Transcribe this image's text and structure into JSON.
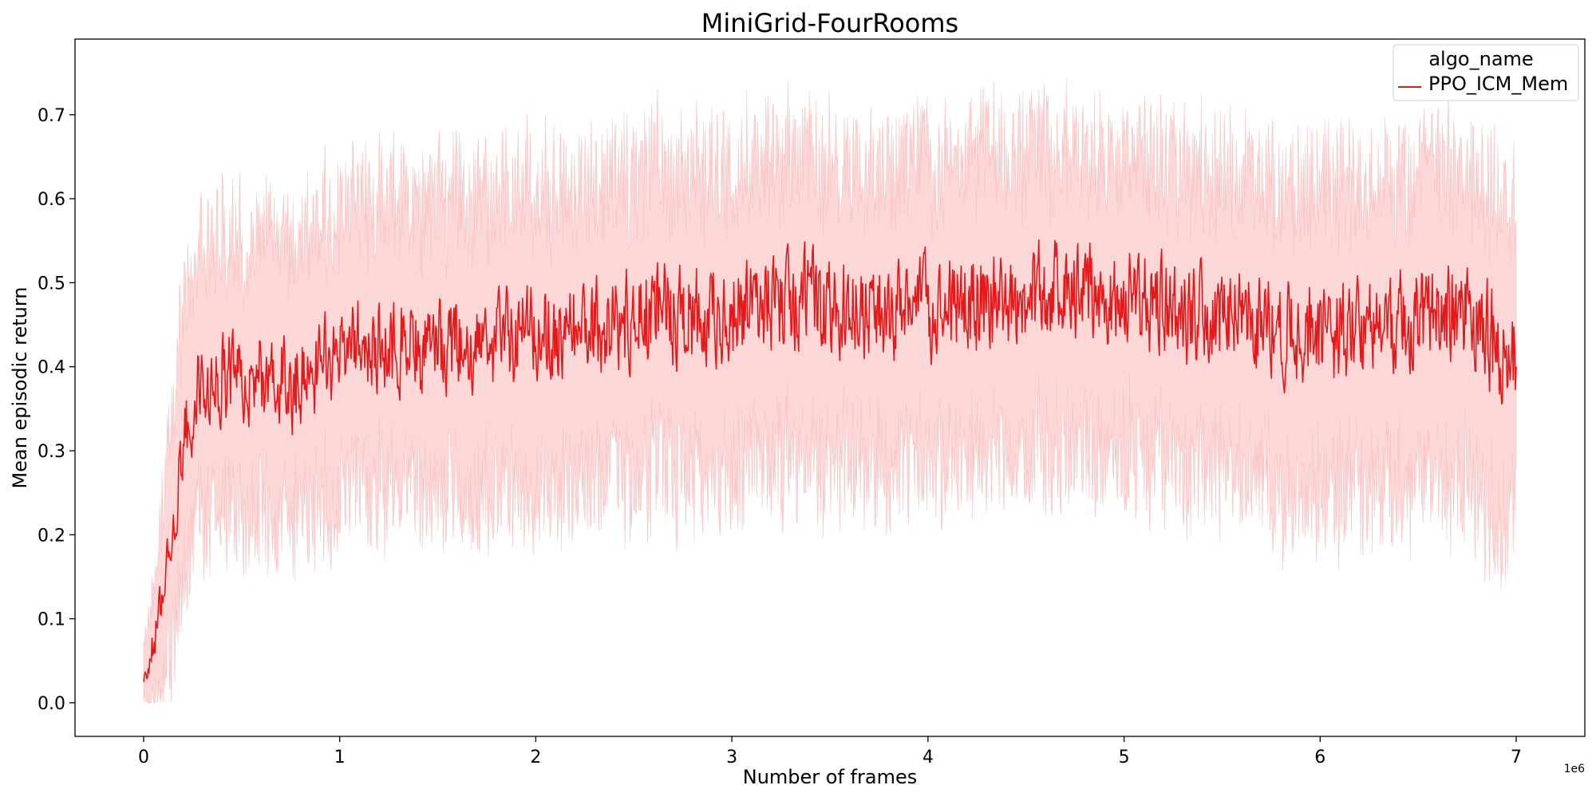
{
  "chart_data": {
    "type": "line",
    "title": "MiniGrid-FourRooms",
    "xlabel": "Number of frames",
    "ylabel": "Mean episodic return",
    "x_offset_label": "1e6",
    "xlim": [
      -350000,
      7350000
    ],
    "ylim": [
      -0.04,
      0.79
    ],
    "x_ticks": [
      0,
      1000000,
      2000000,
      3000000,
      4000000,
      5000000,
      6000000,
      7000000
    ],
    "x_tick_labels": [
      "0",
      "1",
      "2",
      "3",
      "4",
      "5",
      "6",
      "7"
    ],
    "y_ticks": [
      0.0,
      0.1,
      0.2,
      0.3,
      0.4,
      0.5,
      0.6,
      0.7
    ],
    "y_tick_labels": [
      "0.0",
      "0.1",
      "0.2",
      "0.3",
      "0.4",
      "0.5",
      "0.6",
      "0.7"
    ],
    "grid": false,
    "legend": {
      "title": "algo_name",
      "position": "top-right"
    },
    "colors": {
      "line": "#e31a1c",
      "band": "#f7b6b7"
    },
    "series": [
      {
        "name": "PPO_ICM_Mem",
        "x": [
          0,
          50000,
          100000,
          150000,
          200000,
          250000,
          300000,
          400000,
          500000,
          600000,
          700000,
          800000,
          900000,
          1000000,
          1200000,
          1400000,
          1600000,
          1800000,
          2000000,
          2200000,
          2400000,
          2600000,
          2800000,
          3000000,
          3200000,
          3400000,
          3600000,
          3800000,
          4000000,
          4200000,
          4400000,
          4600000,
          4800000,
          5000000,
          5200000,
          5400000,
          5600000,
          5800000,
          6000000,
          6200000,
          6400000,
          6600000,
          6800000,
          6900000,
          7000000
        ],
        "mean": [
          0.02,
          0.07,
          0.14,
          0.22,
          0.3,
          0.35,
          0.38,
          0.39,
          0.38,
          0.39,
          0.38,
          0.38,
          0.4,
          0.42,
          0.43,
          0.42,
          0.43,
          0.43,
          0.44,
          0.44,
          0.45,
          0.47,
          0.46,
          0.47,
          0.48,
          0.48,
          0.47,
          0.47,
          0.47,
          0.48,
          0.48,
          0.49,
          0.48,
          0.49,
          0.47,
          0.46,
          0.46,
          0.44,
          0.44,
          0.44,
          0.45,
          0.46,
          0.46,
          0.42,
          0.41
        ],
        "lower": [
          0.0,
          0.0,
          0.02,
          0.08,
          0.14,
          0.2,
          0.22,
          0.24,
          0.22,
          0.23,
          0.22,
          0.22,
          0.23,
          0.25,
          0.26,
          0.25,
          0.25,
          0.25,
          0.26,
          0.26,
          0.27,
          0.28,
          0.27,
          0.28,
          0.29,
          0.29,
          0.29,
          0.28,
          0.28,
          0.29,
          0.3,
          0.3,
          0.29,
          0.3,
          0.29,
          0.28,
          0.27,
          0.25,
          0.25,
          0.25,
          0.26,
          0.27,
          0.26,
          0.2,
          0.24
        ],
        "upper": [
          0.06,
          0.14,
          0.25,
          0.36,
          0.46,
          0.51,
          0.55,
          0.56,
          0.55,
          0.56,
          0.55,
          0.55,
          0.57,
          0.59,
          0.6,
          0.59,
          0.6,
          0.6,
          0.61,
          0.61,
          0.62,
          0.64,
          0.63,
          0.64,
          0.65,
          0.65,
          0.64,
          0.64,
          0.64,
          0.65,
          0.65,
          0.66,
          0.65,
          0.66,
          0.64,
          0.63,
          0.63,
          0.61,
          0.61,
          0.61,
          0.62,
          0.63,
          0.63,
          0.6,
          0.58
        ]
      }
    ]
  }
}
